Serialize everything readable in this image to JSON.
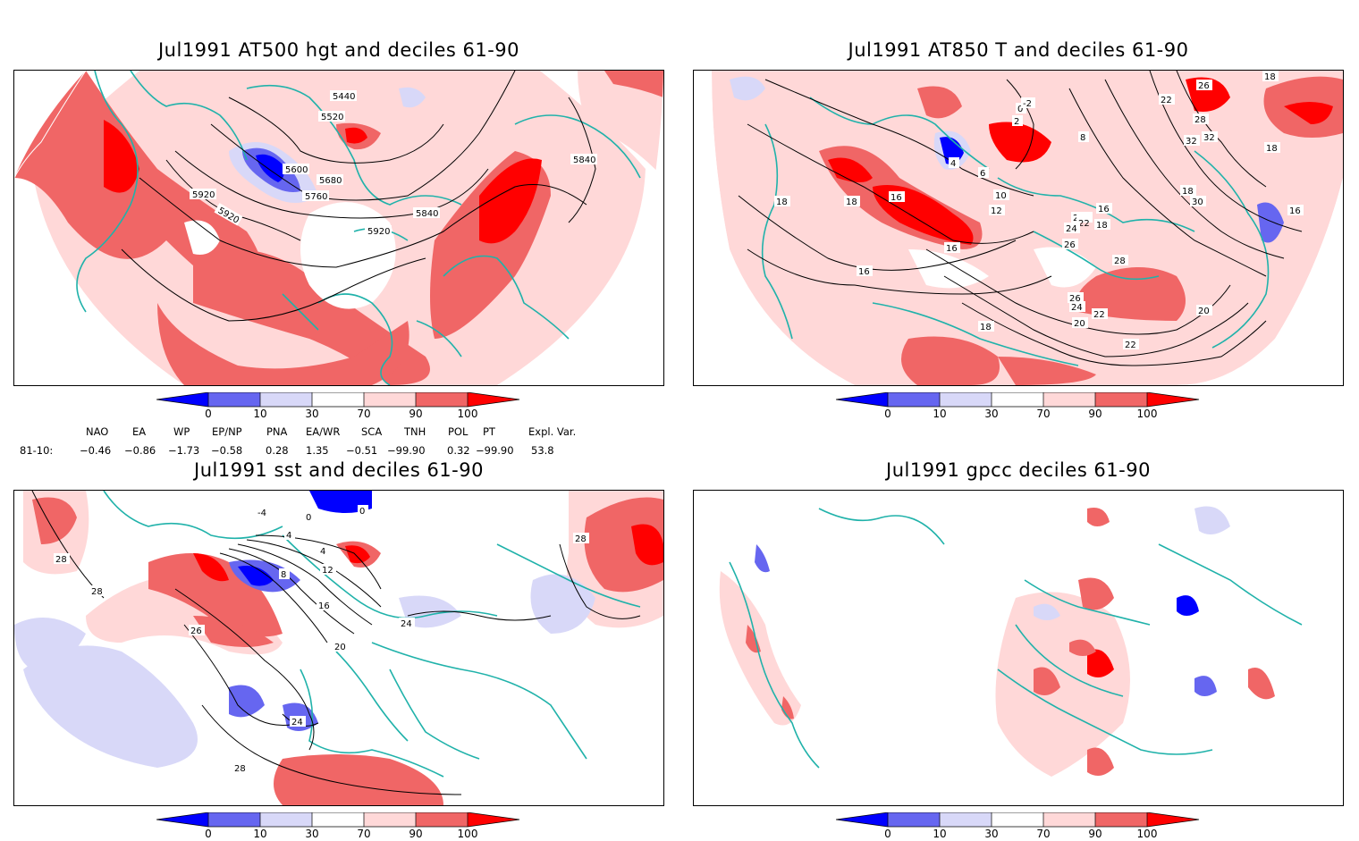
{
  "panels": [
    {
      "title": "Jul1991 AT500 hgt and deciles 61-90",
      "contour_labels": [
        "5440",
        "5520",
        "5600",
        "5680",
        "5760",
        "5840",
        "5920",
        "5920",
        "5920",
        "5840"
      ]
    },
    {
      "title": "Jul1991 AT850 T and deciles 61-90",
      "contour_labels": [
        "22",
        "20",
        "18",
        "18",
        "16",
        "16",
        "16",
        "12",
        "10",
        "6",
        "4",
        "2",
        "0",
        "-2",
        "8",
        "16",
        "18",
        "20",
        "22",
        "24",
        "26",
        "28",
        "26",
        "24",
        "22",
        "20",
        "18",
        "18",
        "30",
        "28",
        "32",
        "32",
        "26",
        "22",
        "18",
        "16",
        "18"
      ]
    },
    {
      "title": "Jul1991 sst and deciles 61-90",
      "contour_labels": [
        "28",
        "28",
        "26",
        "24",
        "20",
        "16",
        "12",
        "8",
        "4",
        "4",
        "0",
        "-4",
        "0",
        "24",
        "28",
        "28"
      ]
    },
    {
      "title": "Jul1991 gpcc deciles 61-90",
      "contour_labels": []
    }
  ],
  "colorbar": {
    "labels": [
      "0",
      "10",
      "30",
      "70",
      "90",
      "100"
    ],
    "colors": [
      "#0000ff",
      "#6666f0",
      "#d8d8f8",
      "#ffffff",
      "#ffd8d8",
      "#f06666",
      "#ff0000"
    ]
  },
  "indices": {
    "names": [
      "NAO",
      "EA",
      "WP",
      "EP/NP",
      "PNA",
      "EA/WR",
      "SCA",
      "TNH",
      "POL",
      "PT",
      "Expl. Var."
    ],
    "period": "81-10:",
    "values": [
      "−0.46",
      "−0.86",
      "−1.73",
      "−0.58",
      "0.28",
      "1.35",
      "−0.51",
      "−99.90",
      "0.32",
      "−99.90",
      "53.8"
    ]
  }
}
